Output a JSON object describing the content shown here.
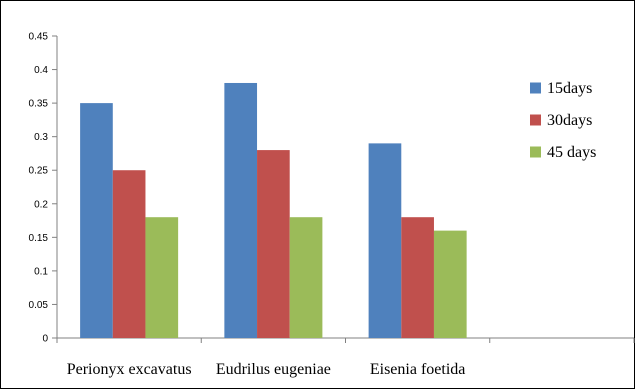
{
  "chart_data": {
    "type": "bar",
    "categories": [
      "Perionyx excavatus",
      "Eudrilus eugeniae",
      "Eisenia foetida",
      ""
    ],
    "series": [
      {
        "name": "15days",
        "values": [
          0.35,
          0.38,
          0.29,
          null
        ],
        "color": "#4F81BD"
      },
      {
        "name": "30days",
        "values": [
          0.25,
          0.28,
          0.18,
          null
        ],
        "color": "#C0504D"
      },
      {
        "name": "45 days",
        "values": [
          0.18,
          0.18,
          0.16,
          null
        ],
        "color": "#9BBB59"
      }
    ],
    "yticks": [
      "0",
      "0.05",
      "0.1",
      "0.15",
      "0.2",
      "0.25",
      "0.3",
      "0.35",
      "0.4",
      "0.45"
    ],
    "ylim": [
      0,
      0.45
    ],
    "grid": false,
    "legend_position": "right",
    "title": "",
    "xlabel": "",
    "ylabel": ""
  }
}
